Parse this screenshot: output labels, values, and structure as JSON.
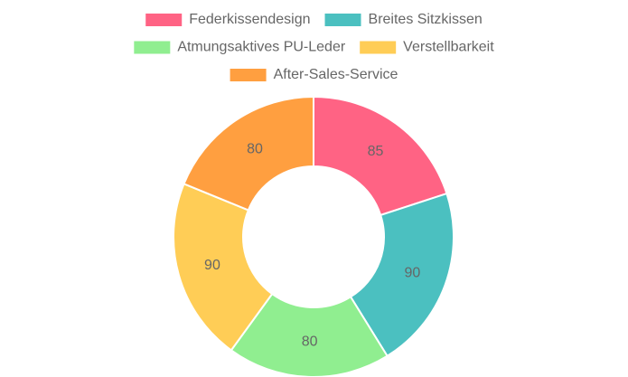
{
  "chart_data": {
    "type": "doughnut",
    "categories": [
      "Federkissendesign",
      "Breites Sitzkissen",
      "Atmungsaktives PU-Leder",
      "Verstellbarkeit",
      "After-Sales-Service"
    ],
    "values": [
      85,
      90,
      80,
      90,
      80
    ],
    "colors": [
      "#ff6384",
      "#4bc0c0",
      "#90ee90",
      "#ffcd56",
      "#ff9f40"
    ],
    "legend": "top"
  }
}
